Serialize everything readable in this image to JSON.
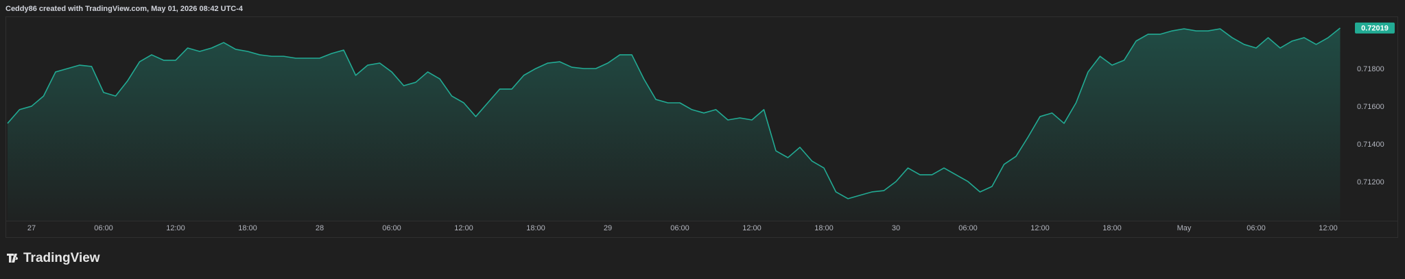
{
  "chart_data": {
    "type": "area",
    "title": "Ceddy86 created with TradingView.com, May 01, 2026 08:42 UTC-4",
    "categories": [
      null,
      null,
      "27",
      null,
      null,
      null,
      null,
      null,
      "06:00",
      null,
      null,
      null,
      null,
      null,
      "12:00",
      null,
      null,
      null,
      null,
      null,
      "18:00",
      null,
      null,
      null,
      null,
      null,
      "28",
      null,
      null,
      null,
      null,
      null,
      "06:00",
      null,
      null,
      null,
      null,
      null,
      "12:00",
      null,
      null,
      null,
      null,
      null,
      "18:00",
      null,
      null,
      null,
      null,
      null,
      "29",
      null,
      null,
      null,
      null,
      null,
      "06:00",
      null,
      null,
      null,
      null,
      null,
      "12:00",
      null,
      null,
      null,
      null,
      null,
      "18:00",
      null,
      null,
      null,
      null,
      null,
      "30",
      null,
      null,
      null,
      null,
      null,
      "06:00",
      null,
      null,
      null,
      null,
      null,
      "12:00",
      null,
      null,
      null,
      null,
      null,
      "18:00",
      null,
      null,
      null,
      null,
      null,
      "May",
      null,
      null,
      null,
      null,
      null,
      "06:00",
      null,
      null,
      null,
      null,
      null,
      "12:00",
      null
    ],
    "series": [
      {
        "color": "#22ab94",
        "values": [
          0.71513,
          0.71586,
          0.71604,
          0.71658,
          0.71786,
          0.71804,
          0.71822,
          0.71815,
          0.71677,
          0.71658,
          0.71739,
          0.7184,
          0.71877,
          0.71848,
          0.71848,
          0.71913,
          0.71895,
          0.71913,
          0.71942,
          0.71906,
          0.71895,
          0.71877,
          0.71869,
          0.71869,
          0.71859,
          0.71859,
          0.71859,
          0.71884,
          0.71902,
          0.71768,
          0.71822,
          0.71833,
          0.71786,
          0.71713,
          0.71731,
          0.71786,
          0.71749,
          0.71658,
          0.71622,
          0.71549,
          0.71622,
          0.71695,
          0.71695,
          0.71768,
          0.71804,
          0.71833,
          0.7184,
          0.71811,
          0.71804,
          0.71804,
          0.71833,
          0.71877,
          0.71877,
          0.71749,
          0.7164,
          0.71622,
          0.71622,
          0.71586,
          0.71568,
          0.71586,
          0.71531,
          0.71542,
          0.71531,
          0.71586,
          0.71367,
          0.71331,
          0.71386,
          0.71313,
          0.71276,
          0.71149,
          0.71113,
          0.71131,
          0.71149,
          0.71156,
          0.71204,
          0.71276,
          0.7124,
          0.7124,
          0.71276,
          0.7124,
          0.71204,
          0.71149,
          0.71178,
          0.71295,
          0.71338,
          0.7144,
          0.71549,
          0.71568,
          0.71513,
          0.71622,
          0.71786,
          0.71869,
          0.71822,
          0.71848,
          0.7195,
          0.71986,
          0.71986,
          0.72004,
          0.72015,
          0.72004,
          0.72004,
          0.72015,
          0.71968,
          0.71932,
          0.71913,
          0.71968,
          0.71913,
          0.7195,
          0.71968,
          0.71932,
          0.71968,
          0.72019
        ]
      }
    ],
    "ylim": [
      0.70996,
      0.72066
    ],
    "yticks": [
      {
        "value": 0.712,
        "label": "0.71200"
      },
      {
        "value": 0.714,
        "label": "0.71400"
      },
      {
        "value": 0.716,
        "label": "0.71600"
      },
      {
        "value": 0.718,
        "label": "0.71800"
      }
    ],
    "last_price": {
      "value": 0.72019,
      "label": "0.72019"
    },
    "grid": false
  },
  "footer": {
    "brand": "TradingView"
  }
}
